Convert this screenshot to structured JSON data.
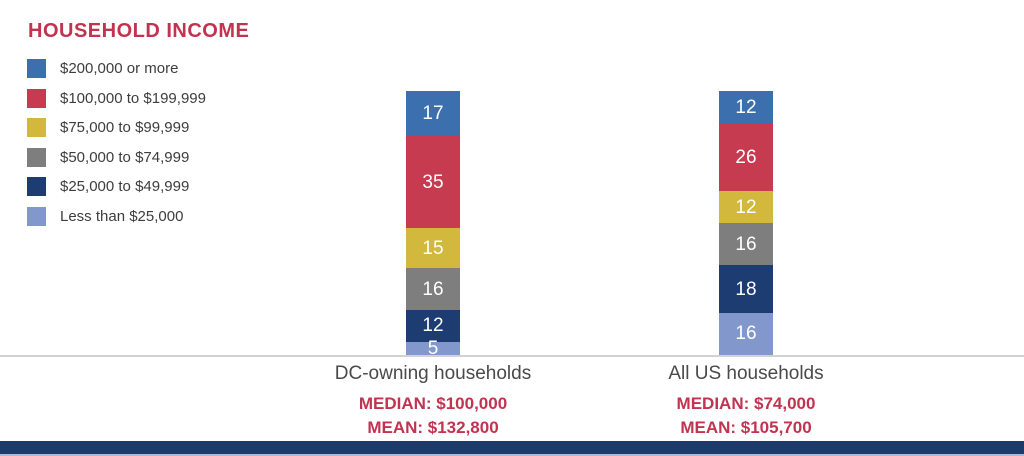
{
  "title": "HOUSEHOLD INCOME",
  "chart_data": {
    "type": "bar",
    "stacked": true,
    "units": "percent of households",
    "categories": [
      "DC-owning households",
      "All US households"
    ],
    "series": [
      {
        "name": "$200,000 or more",
        "color": "#3b6fae",
        "values": [
          17,
          12
        ]
      },
      {
        "name": "$100,000 to $199,999",
        "color": "#c63b50",
        "values": [
          35,
          26
        ]
      },
      {
        "name": "$75,000 to $99,999",
        "color": "#d3b83e",
        "values": [
          15,
          12
        ]
      },
      {
        "name": "$50,000 to $74,999",
        "color": "#7e7e7e",
        "values": [
          16,
          16
        ]
      },
      {
        "name": "$25,000 to $49,999",
        "color": "#1d3c72",
        "values": [
          12,
          18
        ]
      },
      {
        "name": "Less than $25,000",
        "color": "#8298cc",
        "values": [
          5,
          16
        ]
      }
    ],
    "stats": [
      {
        "median_label": "MEDIAN: $100,000",
        "mean_label": "MEAN: $132,800"
      },
      {
        "median_label": "MEDIAN: $74,000",
        "mean_label": "MEAN: $105,700"
      }
    ],
    "ylim": [
      0,
      100
    ],
    "legend_position": "top-left",
    "value_labels_position": "inside"
  },
  "colors": {
    "title_text": "#c23350",
    "stats_text": "#c23350",
    "category_text": "#4a4a4a",
    "legend_text": "#3d3d3d",
    "value_text": "#ffffff",
    "baseline": "#d2d2d2",
    "footer_bar": "#1e3a6a",
    "footer_edge": "#aebad2",
    "background": "#ffffff"
  }
}
